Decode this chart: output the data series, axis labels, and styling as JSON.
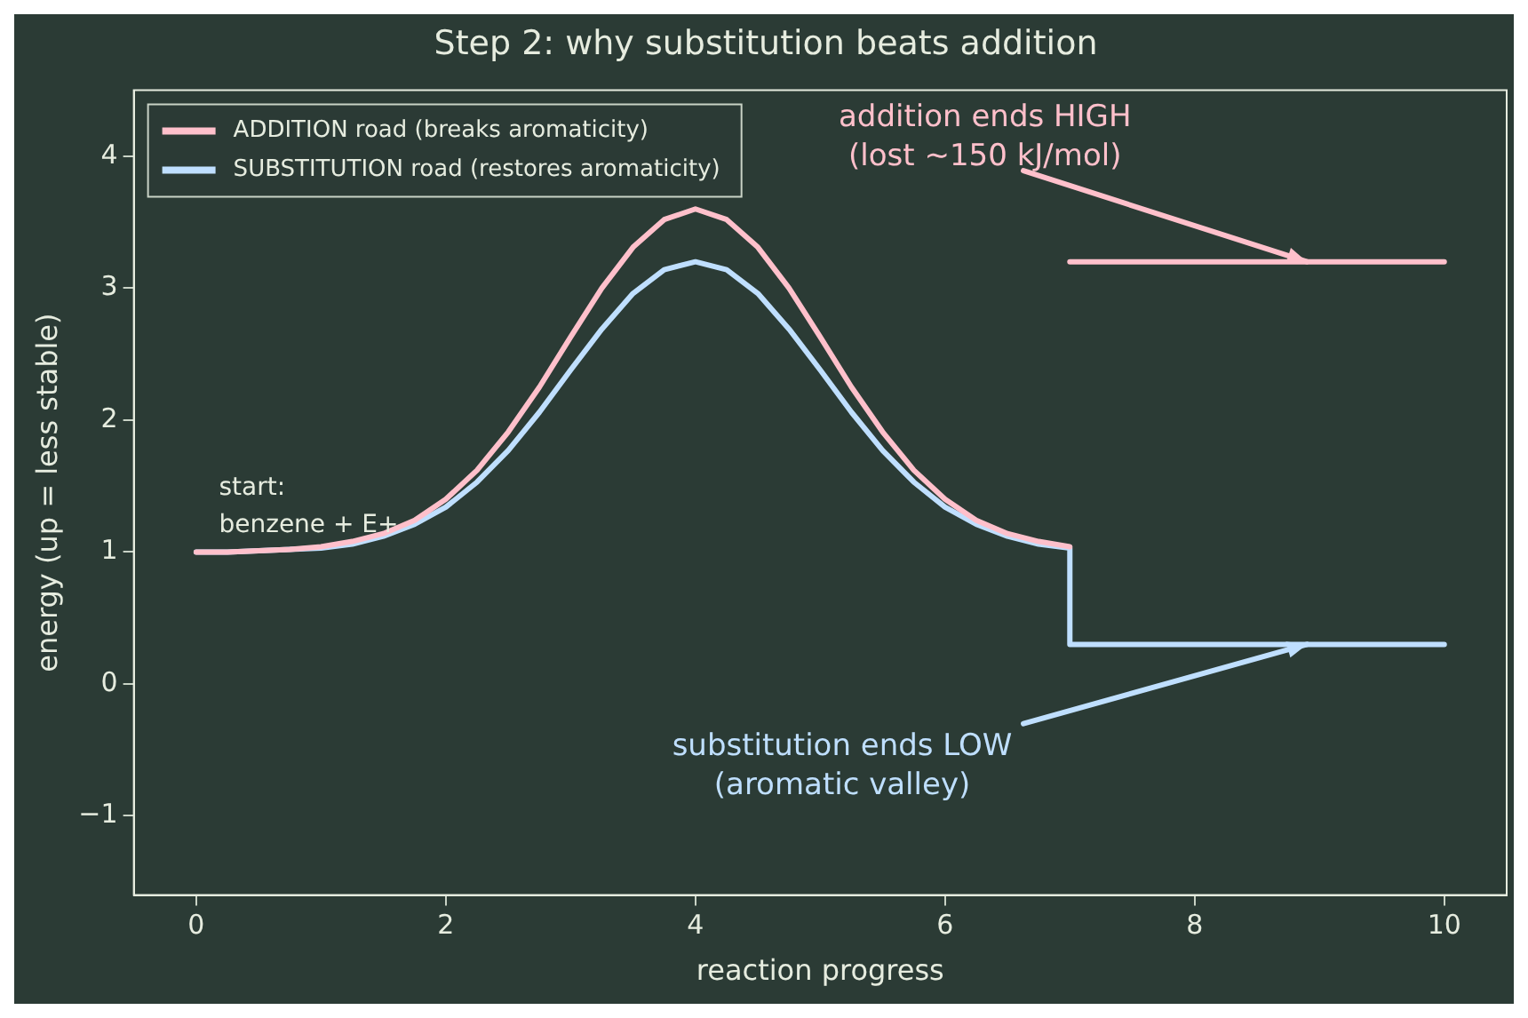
{
  "chart_data": {
    "type": "line",
    "title": "Step 2: why substitution beats addition",
    "xlabel": "reaction progress",
    "ylabel": "energy (up = less stable)",
    "xlim": [
      -0.5,
      10.5
    ],
    "ylim": [
      -1.6,
      4.5
    ],
    "xticks": [
      0,
      2,
      4,
      6,
      8,
      10
    ],
    "yticks": [
      -1,
      0,
      1,
      2,
      3,
      4
    ],
    "grid": false,
    "legend": "top left",
    "marker": "none",
    "line_style": "solid",
    "series": [
      {
        "name": "ADDITION road (breaks aromaticity)",
        "color": "#ffc0cb",
        "x": [
          0,
          0.25,
          0.5,
          0.75,
          1,
          1.25,
          1.5,
          1.75,
          2,
          2.25,
          2.5,
          2.75,
          3,
          3.25,
          3.5,
          3.75,
          4,
          4.25,
          4.5,
          4.75,
          5,
          5.25,
          5.5,
          5.75,
          6,
          6.25,
          6.5,
          6.75,
          7
        ],
        "values": [
          1.0,
          1.0,
          1.01,
          1.02,
          1.04,
          1.08,
          1.14,
          1.24,
          1.4,
          1.62,
          1.91,
          2.25,
          2.63,
          3.0,
          3.31,
          3.52,
          3.6,
          3.52,
          3.31,
          3.0,
          2.63,
          2.25,
          1.91,
          1.62,
          1.4,
          1.24,
          1.14,
          1.08,
          1.04
        ]
      },
      {
        "name": "SUBSTITUTION road (restores aromaticity)",
        "color": "#bfdfff",
        "x": [
          0,
          0.25,
          0.5,
          0.75,
          1,
          1.25,
          1.5,
          1.75,
          2,
          2.25,
          2.5,
          2.75,
          3,
          3.25,
          3.5,
          3.75,
          4,
          4.25,
          4.5,
          4.75,
          5,
          5.25,
          5.5,
          5.75,
          6,
          6.25,
          6.5,
          6.75,
          7,
          7,
          10
        ],
        "values": [
          1.0,
          1.0,
          1.01,
          1.02,
          1.03,
          1.06,
          1.12,
          1.21,
          1.34,
          1.53,
          1.77,
          2.06,
          2.38,
          2.69,
          2.96,
          3.14,
          3.2,
          3.14,
          2.96,
          2.69,
          2.38,
          2.06,
          1.77,
          1.53,
          1.34,
          1.21,
          1.12,
          1.06,
          1.03,
          0.3,
          0.3
        ]
      },
      {
        "color": "#ffc0cb",
        "x": [
          7,
          10
        ],
        "values": [
          3.2,
          3.2
        ]
      }
    ],
    "annotations": [
      "start:\nbenzene + E+",
      {
        "text": "addition ends HIGH\n(lost ~150 kJ/mol)",
        "x": 8.9,
        "y": 3.2
      },
      {
        "text": "substitution ends LOW\n(aromatic valley)",
        "x": 8.9,
        "y": 0.3
      }
    ]
  }
}
